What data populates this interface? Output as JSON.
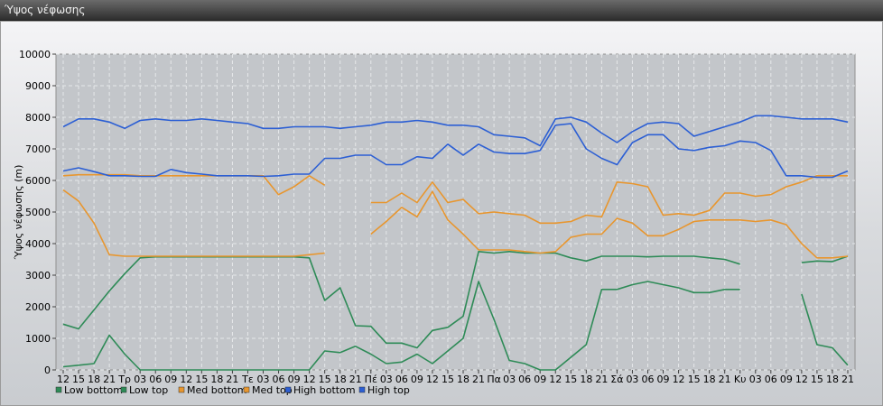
{
  "window": {
    "title": "Ύψος νέφωσης"
  },
  "chart_data": {
    "type": "line",
    "title": "",
    "xlabel": "",
    "ylabel": "Ύψος νέφωσης (m)",
    "ylim": [
      0,
      10000
    ],
    "yticks": [
      0,
      1000,
      2000,
      3000,
      4000,
      5000,
      6000,
      7000,
      8000,
      9000,
      10000
    ],
    "grid": true,
    "legend_position": "bottom",
    "categories": [
      "12",
      "15",
      "18",
      "21",
      "Τρ",
      "03",
      "06",
      "09",
      "12",
      "15",
      "18",
      "21",
      "Τε",
      "03",
      "06",
      "09",
      "12",
      "15",
      "18",
      "21",
      "Πέ",
      "03",
      "06",
      "09",
      "12",
      "15",
      "18",
      "21",
      "Πα",
      "03",
      "06",
      "09",
      "12",
      "15",
      "18",
      "21",
      "Σά",
      "03",
      "06",
      "09",
      "12",
      "15",
      "18",
      "21",
      "Κυ",
      "03",
      "06",
      "09",
      "12",
      "15",
      "18",
      "21"
    ],
    "series": [
      {
        "name": "Low bottom",
        "color": "#2e8b57",
        "values": [
          100,
          150,
          200,
          1100,
          500,
          0,
          0,
          0,
          0,
          0,
          0,
          0,
          0,
          0,
          0,
          0,
          0,
          600,
          550,
          750,
          500,
          200,
          250,
          500,
          200,
          600,
          1000,
          2800,
          1600,
          300,
          200,
          0,
          0,
          400,
          800,
          2550,
          2550,
          2700,
          2800,
          2700,
          2600,
          2450,
          2450,
          2550,
          2550,
          null,
          null,
          null,
          2400,
          800,
          700,
          150
        ]
      },
      {
        "name": "Low top",
        "color": "#2e8b57",
        "values": [
          1450,
          1300,
          1900,
          2500,
          3050,
          3550,
          3580,
          3580,
          3580,
          3580,
          3580,
          3580,
          3580,
          3580,
          3580,
          3580,
          3550,
          2200,
          2600,
          1400,
          1380,
          850,
          850,
          700,
          1250,
          1350,
          1700,
          3750,
          3700,
          3750,
          3700,
          3700,
          3700,
          3550,
          3450,
          3600,
          3600,
          3600,
          3580,
          3600,
          3600,
          3600,
          3550,
          3500,
          3350,
          null,
          null,
          null,
          3400,
          3450,
          3430,
          3600
        ]
      },
      {
        "name": "Med bottom",
        "color": "#e8962e",
        "values": [
          6150,
          6180,
          6180,
          6180,
          6180,
          6150,
          6150,
          6150,
          6150,
          6150,
          6150,
          6150,
          6150,
          6150,
          5550,
          5800,
          6150,
          5850,
          null,
          null,
          4300,
          4700,
          5150,
          4850,
          5650,
          4750,
          4300,
          3800,
          3800,
          3800,
          3750,
          3700,
          3750,
          4200,
          4300,
          4300,
          4800,
          4650,
          4250,
          4250,
          4450,
          4700,
          4750,
          4750,
          4750,
          4700,
          4750,
          4600,
          4000,
          3550,
          3550,
          3600
        ]
      },
      {
        "name": "Med top",
        "color": "#e8962e",
        "values": [
          5700,
          5350,
          4650,
          3650,
          3600,
          3600,
          3600,
          3600,
          3600,
          3600,
          3600,
          3600,
          3600,
          3600,
          3600,
          3600,
          3650,
          3700,
          null,
          null,
          5300,
          5300,
          5600,
          5300,
          5950,
          5300,
          5400,
          4950,
          5000,
          4950,
          4900,
          4650,
          4650,
          4700,
          4900,
          4850,
          5950,
          5900,
          5800,
          4900,
          4950,
          4900,
          5050,
          5600,
          5600,
          5500,
          5550,
          5800,
          5950,
          6150,
          6150,
          6150
        ]
      },
      {
        "name": "High bottom",
        "color": "#2c5fd4",
        "values": [
          6300,
          6400,
          6280,
          6150,
          6150,
          6130,
          6130,
          6350,
          6250,
          6200,
          6150,
          6150,
          6150,
          6130,
          6150,
          6200,
          6200,
          6700,
          6700,
          6800,
          6800,
          6500,
          6500,
          6750,
          6700,
          7150,
          6800,
          7150,
          6900,
          6850,
          6850,
          6950,
          7750,
          7800,
          7000,
          6700,
          6500,
          7200,
          7450,
          7450,
          7000,
          6950,
          7050,
          7100,
          7250,
          7200,
          6950,
          6150,
          6150,
          6100,
          6100,
          6300
        ]
      },
      {
        "name": "High top",
        "color": "#2c5fd4",
        "values": [
          7700,
          7950,
          7950,
          7850,
          7650,
          7900,
          7950,
          7900,
          7900,
          7950,
          7900,
          7850,
          7800,
          7650,
          7650,
          7700,
          7700,
          7700,
          7650,
          7700,
          7750,
          7850,
          7850,
          7900,
          7850,
          7750,
          7750,
          7700,
          7450,
          7400,
          7350,
          7100,
          7950,
          8000,
          7850,
          7500,
          7200,
          7550,
          7800,
          7850,
          7800,
          7400,
          7550,
          7700,
          7850,
          8050,
          8050,
          8000,
          7950,
          7950,
          7950,
          7850
        ]
      }
    ]
  }
}
